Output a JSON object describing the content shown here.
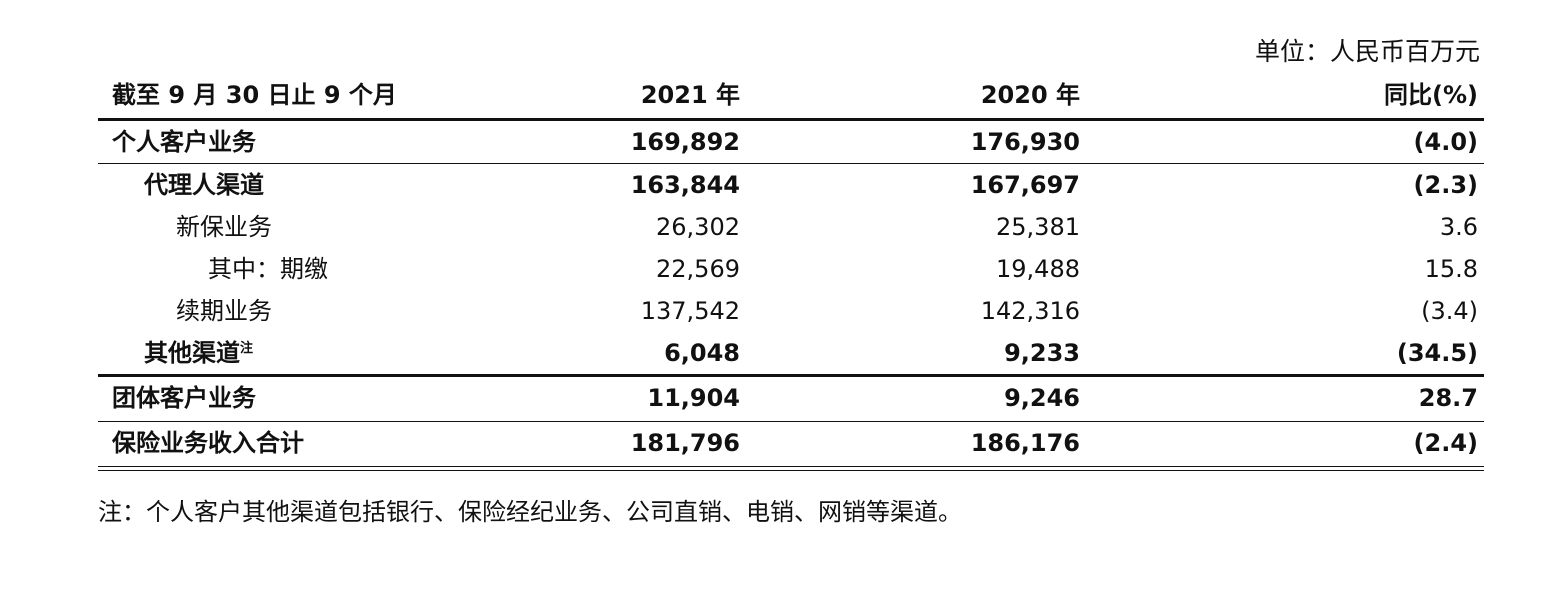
{
  "unit_label": "单位：人民币百万元",
  "header": {
    "period": "截至 9 月 30 日止 9 个月",
    "col_2021": "2021 年",
    "col_2020": "2020 年",
    "col_yoy": "同比(%)"
  },
  "rows": {
    "individual": {
      "label": "个人客户业务",
      "v2021": "169,892",
      "v2020": "176,930",
      "yoy": "(4.0)"
    },
    "agent": {
      "label": "代理人渠道",
      "v2021": "163,844",
      "v2020": "167,697",
      "yoy": "(2.3)"
    },
    "new_business": {
      "label": "新保业务",
      "v2021": "26,302",
      "v2020": "25,381",
      "yoy": "3.6"
    },
    "regular": {
      "label": "其中：期缴",
      "v2021": "22,569",
      "v2020": "19,488",
      "yoy": "15.8"
    },
    "renewal": {
      "label": "续期业务",
      "v2021": "137,542",
      "v2020": "142,316",
      "yoy": "(3.4)"
    },
    "other_channels": {
      "label": "其他渠道",
      "note_mark": "注",
      "v2021": "6,048",
      "v2020": "9,233",
      "yoy": "(34.5)"
    },
    "group": {
      "label": "团体客户业务",
      "v2021": "11,904",
      "v2020": "9,246",
      "yoy": "28.7"
    },
    "total": {
      "label": "保险业务收入合计",
      "v2021": "181,796",
      "v2020": "186,176",
      "yoy": "(2.4)"
    }
  },
  "footnote": "注：个人客户其他渠道包括银行、保险经纪业务、公司直销、电销、网销等渠道。"
}
